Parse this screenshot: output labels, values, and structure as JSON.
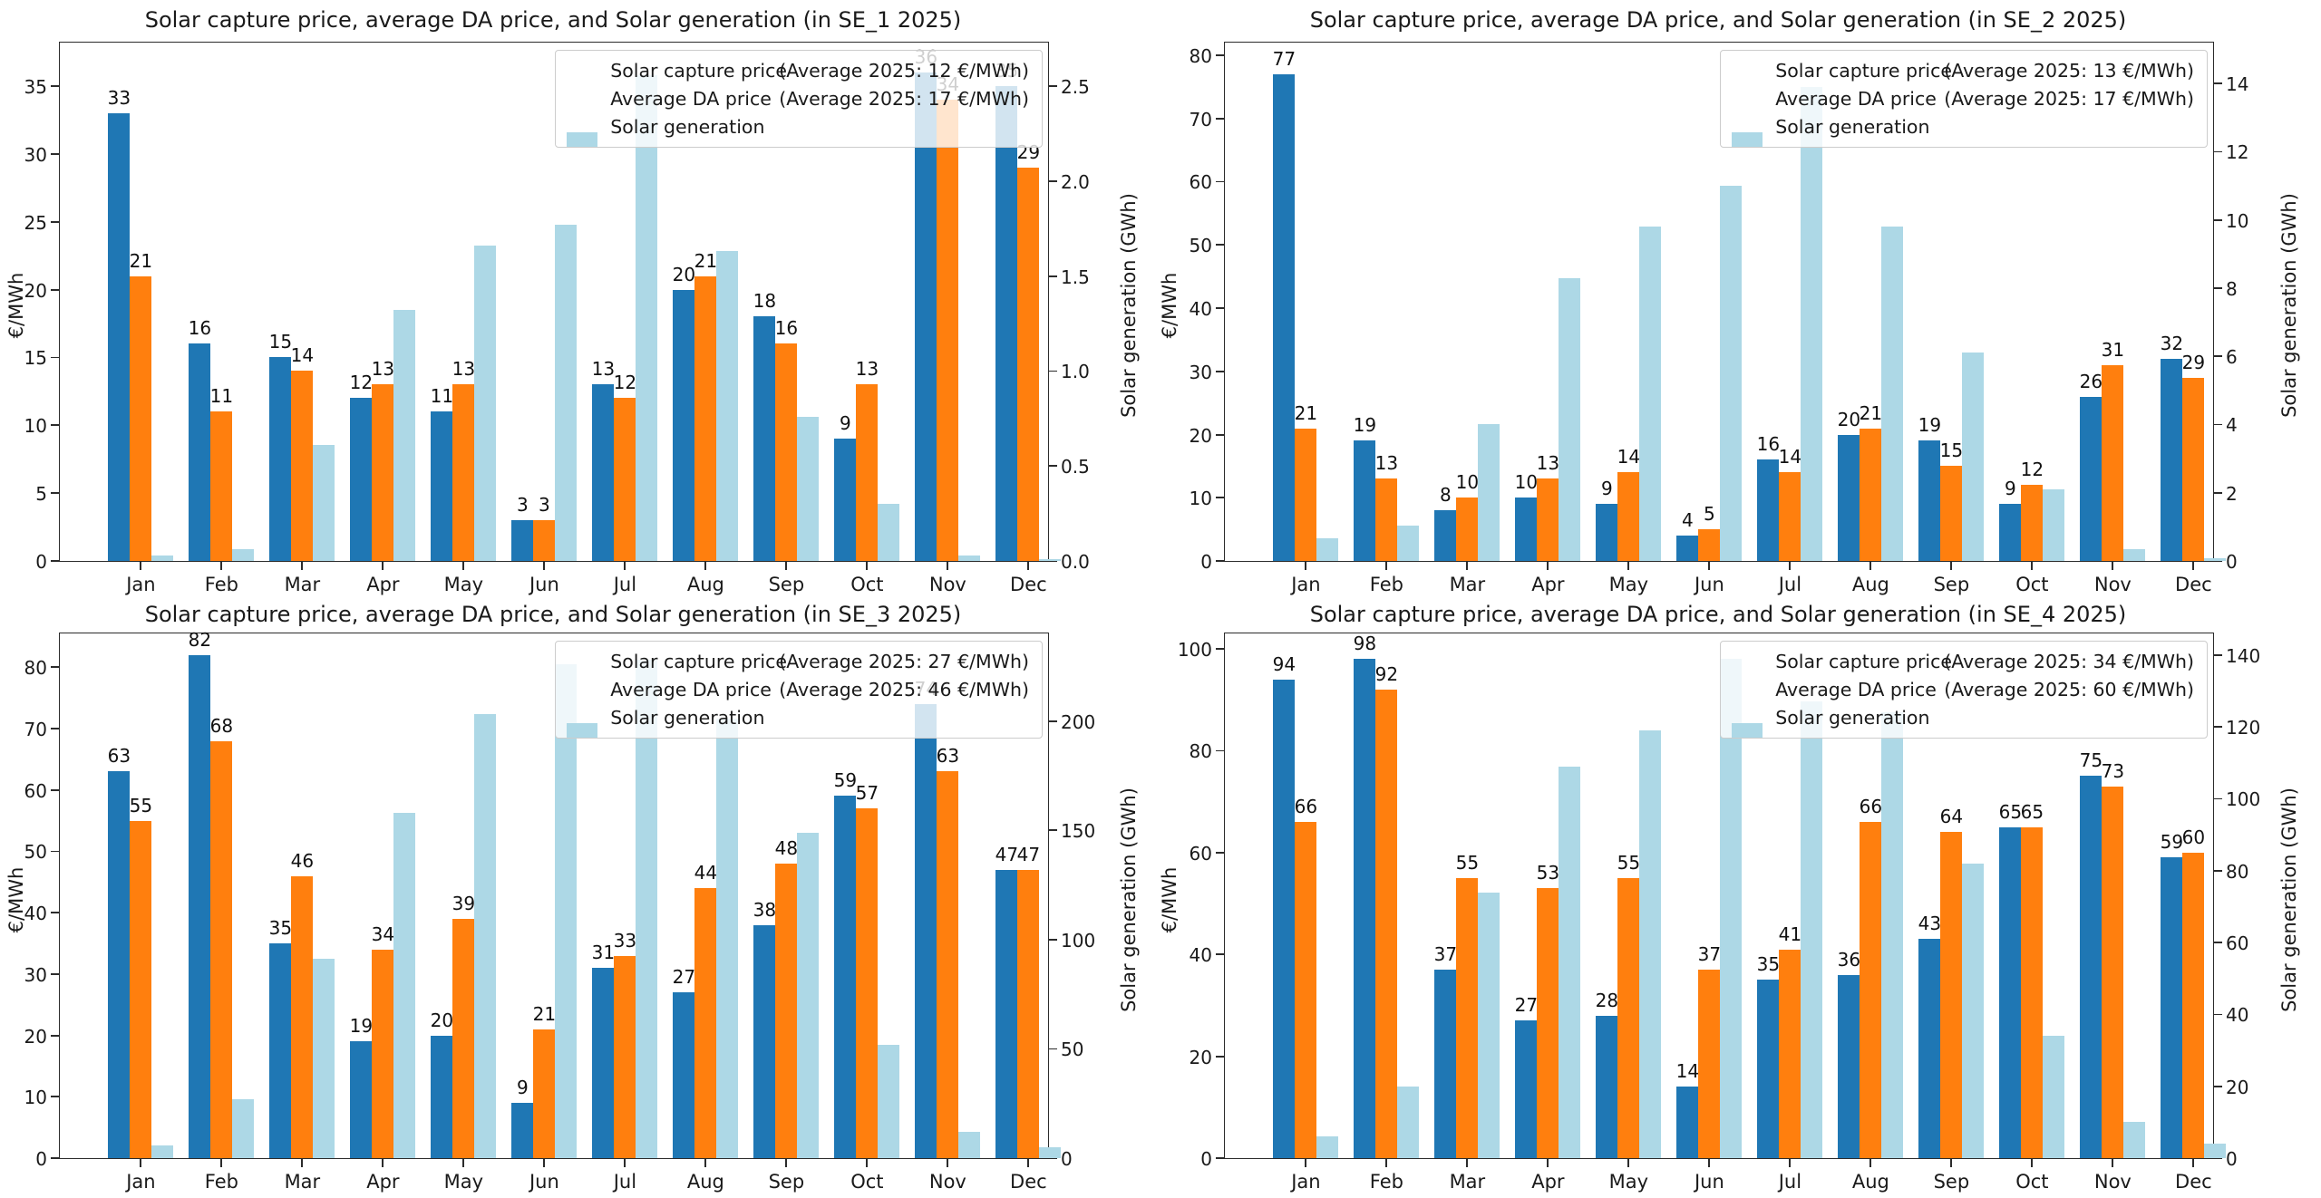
{
  "figure": {
    "ylabel_left": "€/MWh",
    "ylabel_right": "Solar generation (GWh)",
    "colors": {
      "capture": "#1f77b4",
      "da": "#ff7f0e",
      "generation": "#add8e6",
      "spine": "#2b2b2b",
      "legend_border": "#cccccc"
    }
  },
  "chart_data": [
    {
      "type": "bar",
      "title": "Solar capture price, average DA price, and Solar generation (in SE_1 2025)",
      "xlabel": "",
      "ylabel_left": "€/MWh",
      "ylabel_right": "Solar generation (GWh)",
      "categories": [
        "Jan",
        "Feb",
        "Mar",
        "Apr",
        "May",
        "Jun",
        "Jul",
        "Aug",
        "Sep",
        "Oct",
        "Nov",
        "Dec"
      ],
      "legend": {
        "capture_label": "Solar capture price",
        "capture_avg": "(Average 2025: 12 €/MWh)",
        "da_label": "Average DA price",
        "da_avg": "(Average 2025: 17 €/MWh)",
        "generation_label": "Solar generation"
      },
      "series": [
        {
          "name": "Solar capture price",
          "axis": "left",
          "values": [
            33,
            16,
            15,
            12,
            11,
            3,
            13,
            20,
            18,
            9,
            36,
            35
          ]
        },
        {
          "name": "Average DA price",
          "axis": "left",
          "values": [
            21,
            11,
            14,
            13,
            13,
            3,
            12,
            21,
            16,
            13,
            34,
            29
          ]
        },
        {
          "name": "Solar generation",
          "axis": "right",
          "values": [
            0.03,
            0.06,
            0.61,
            1.32,
            1.66,
            1.77,
            2.56,
            1.63,
            0.76,
            0.3,
            0.03,
            0.01
          ]
        }
      ],
      "left_axis": {
        "ticks": [
          0,
          5,
          10,
          15,
          20,
          25,
          30,
          35
        ],
        "max": 38.2,
        "decimals": 0
      },
      "right_axis": {
        "ticks": [
          0,
          0.5,
          1,
          1.5,
          2,
          2.5
        ],
        "max": 2.73,
        "decimals": 1
      },
      "legend_position": "upper right",
      "grid": false
    },
    {
      "type": "bar",
      "title": "Solar capture price, average DA price, and Solar generation (in SE_2 2025)",
      "xlabel": "",
      "ylabel_left": "€/MWh",
      "ylabel_right": "Solar generation (GWh)",
      "categories": [
        "Jan",
        "Feb",
        "Mar",
        "Apr",
        "May",
        "Jun",
        "Jul",
        "Aug",
        "Sep",
        "Oct",
        "Nov",
        "Dec"
      ],
      "legend": {
        "capture_label": "Solar capture price",
        "capture_avg": "(Average 2025: 13 €/MWh)",
        "da_label": "Average DA price",
        "da_avg": "(Average 2025: 17 €/MWh)",
        "generation_label": "Solar generation"
      },
      "series": [
        {
          "name": "Solar capture price",
          "axis": "left",
          "values": [
            77,
            19,
            8,
            10,
            9,
            4,
            16,
            20,
            19,
            9,
            26,
            32
          ]
        },
        {
          "name": "Average DA price",
          "axis": "left",
          "values": [
            21,
            13,
            10,
            13,
            14,
            5,
            14,
            21,
            15,
            12,
            31,
            29
          ]
        },
        {
          "name": "Solar generation",
          "axis": "right",
          "values": [
            0.66,
            1.04,
            4.0,
            8.3,
            9.8,
            11.0,
            13.9,
            9.8,
            6.1,
            2.1,
            0.35,
            0.08
          ]
        }
      ],
      "left_axis": {
        "ticks": [
          0,
          10,
          20,
          30,
          40,
          50,
          60,
          70,
          80
        ],
        "max": 82,
        "decimals": 0
      },
      "right_axis": {
        "ticks": [
          0,
          2,
          4,
          6,
          8,
          10,
          12,
          14
        ],
        "max": 15.2,
        "decimals": 0
      },
      "legend_position": "upper right",
      "grid": false
    },
    {
      "type": "bar",
      "title": "Solar capture price, average DA price, and Solar generation (in SE_3 2025)",
      "xlabel": "",
      "ylabel_left": "€/MWh",
      "ylabel_right": "Solar generation (GWh)",
      "categories": [
        "Jan",
        "Feb",
        "Mar",
        "Apr",
        "May",
        "Jun",
        "Jul",
        "Aug",
        "Sep",
        "Oct",
        "Nov",
        "Dec"
      ],
      "legend": {
        "capture_label": "Solar capture price",
        "capture_avg": "(Average 2025: 27 €/MWh)",
        "da_label": "Average DA price",
        "da_avg": "(Average 2025: 46 €/MWh)",
        "generation_label": "Solar generation"
      },
      "series": [
        {
          "name": "Solar capture price",
          "axis": "left",
          "values": [
            63,
            82,
            35,
            19,
            20,
            9,
            31,
            27,
            38,
            59,
            74,
            47
          ]
        },
        {
          "name": "Average DA price",
          "axis": "left",
          "values": [
            55,
            68,
            46,
            34,
            39,
            21,
            33,
            44,
            48,
            57,
            63,
            47
          ]
        },
        {
          "name": "Solar generation",
          "axis": "right",
          "values": [
            6,
            27,
            91,
            158,
            203,
            226,
            228,
            201,
            149,
            52,
            12,
            5
          ]
        }
      ],
      "left_axis": {
        "ticks": [
          0,
          10,
          20,
          30,
          40,
          50,
          60,
          70,
          80
        ],
        "max": 85.5,
        "decimals": 0
      },
      "right_axis": {
        "ticks": [
          0,
          50,
          100,
          150,
          200
        ],
        "max": 240,
        "decimals": 0
      },
      "legend_position": "upper right",
      "grid": false
    },
    {
      "type": "bar",
      "title": "Solar capture price, average DA price, and Solar generation (in SE_4 2025)",
      "xlabel": "",
      "ylabel_left": "€/MWh",
      "ylabel_right": "Solar generation (GWh)",
      "categories": [
        "Jan",
        "Feb",
        "Mar",
        "Apr",
        "May",
        "Jun",
        "Jul",
        "Aug",
        "Sep",
        "Oct",
        "Nov",
        "Dec"
      ],
      "legend": {
        "capture_label": "Solar capture price",
        "capture_avg": "(Average 2025: 34 €/MWh)",
        "da_label": "Average DA price",
        "da_avg": "(Average 2025: 60 €/MWh)",
        "generation_label": "Solar generation"
      },
      "series": [
        {
          "name": "Solar capture price",
          "axis": "left",
          "values": [
            94,
            98,
            37,
            27,
            28,
            14,
            35,
            36,
            43,
            65,
            75,
            59
          ]
        },
        {
          "name": "Average DA price",
          "axis": "left",
          "values": [
            66,
            92,
            55,
            53,
            55,
            37,
            41,
            66,
            64,
            65,
            73,
            60
          ]
        },
        {
          "name": "Solar generation",
          "axis": "right",
          "values": [
            6,
            20,
            74,
            109,
            119,
            139,
            127,
            124,
            82,
            34,
            10,
            4
          ]
        }
      ],
      "left_axis": {
        "ticks": [
          0,
          20,
          40,
          60,
          80,
          100
        ],
        "max": 103,
        "decimals": 0
      },
      "right_axis": {
        "ticks": [
          0,
          20,
          40,
          60,
          80,
          100,
          120,
          140
        ],
        "max": 146,
        "decimals": 0
      },
      "legend_position": "upper right",
      "grid": false
    }
  ]
}
